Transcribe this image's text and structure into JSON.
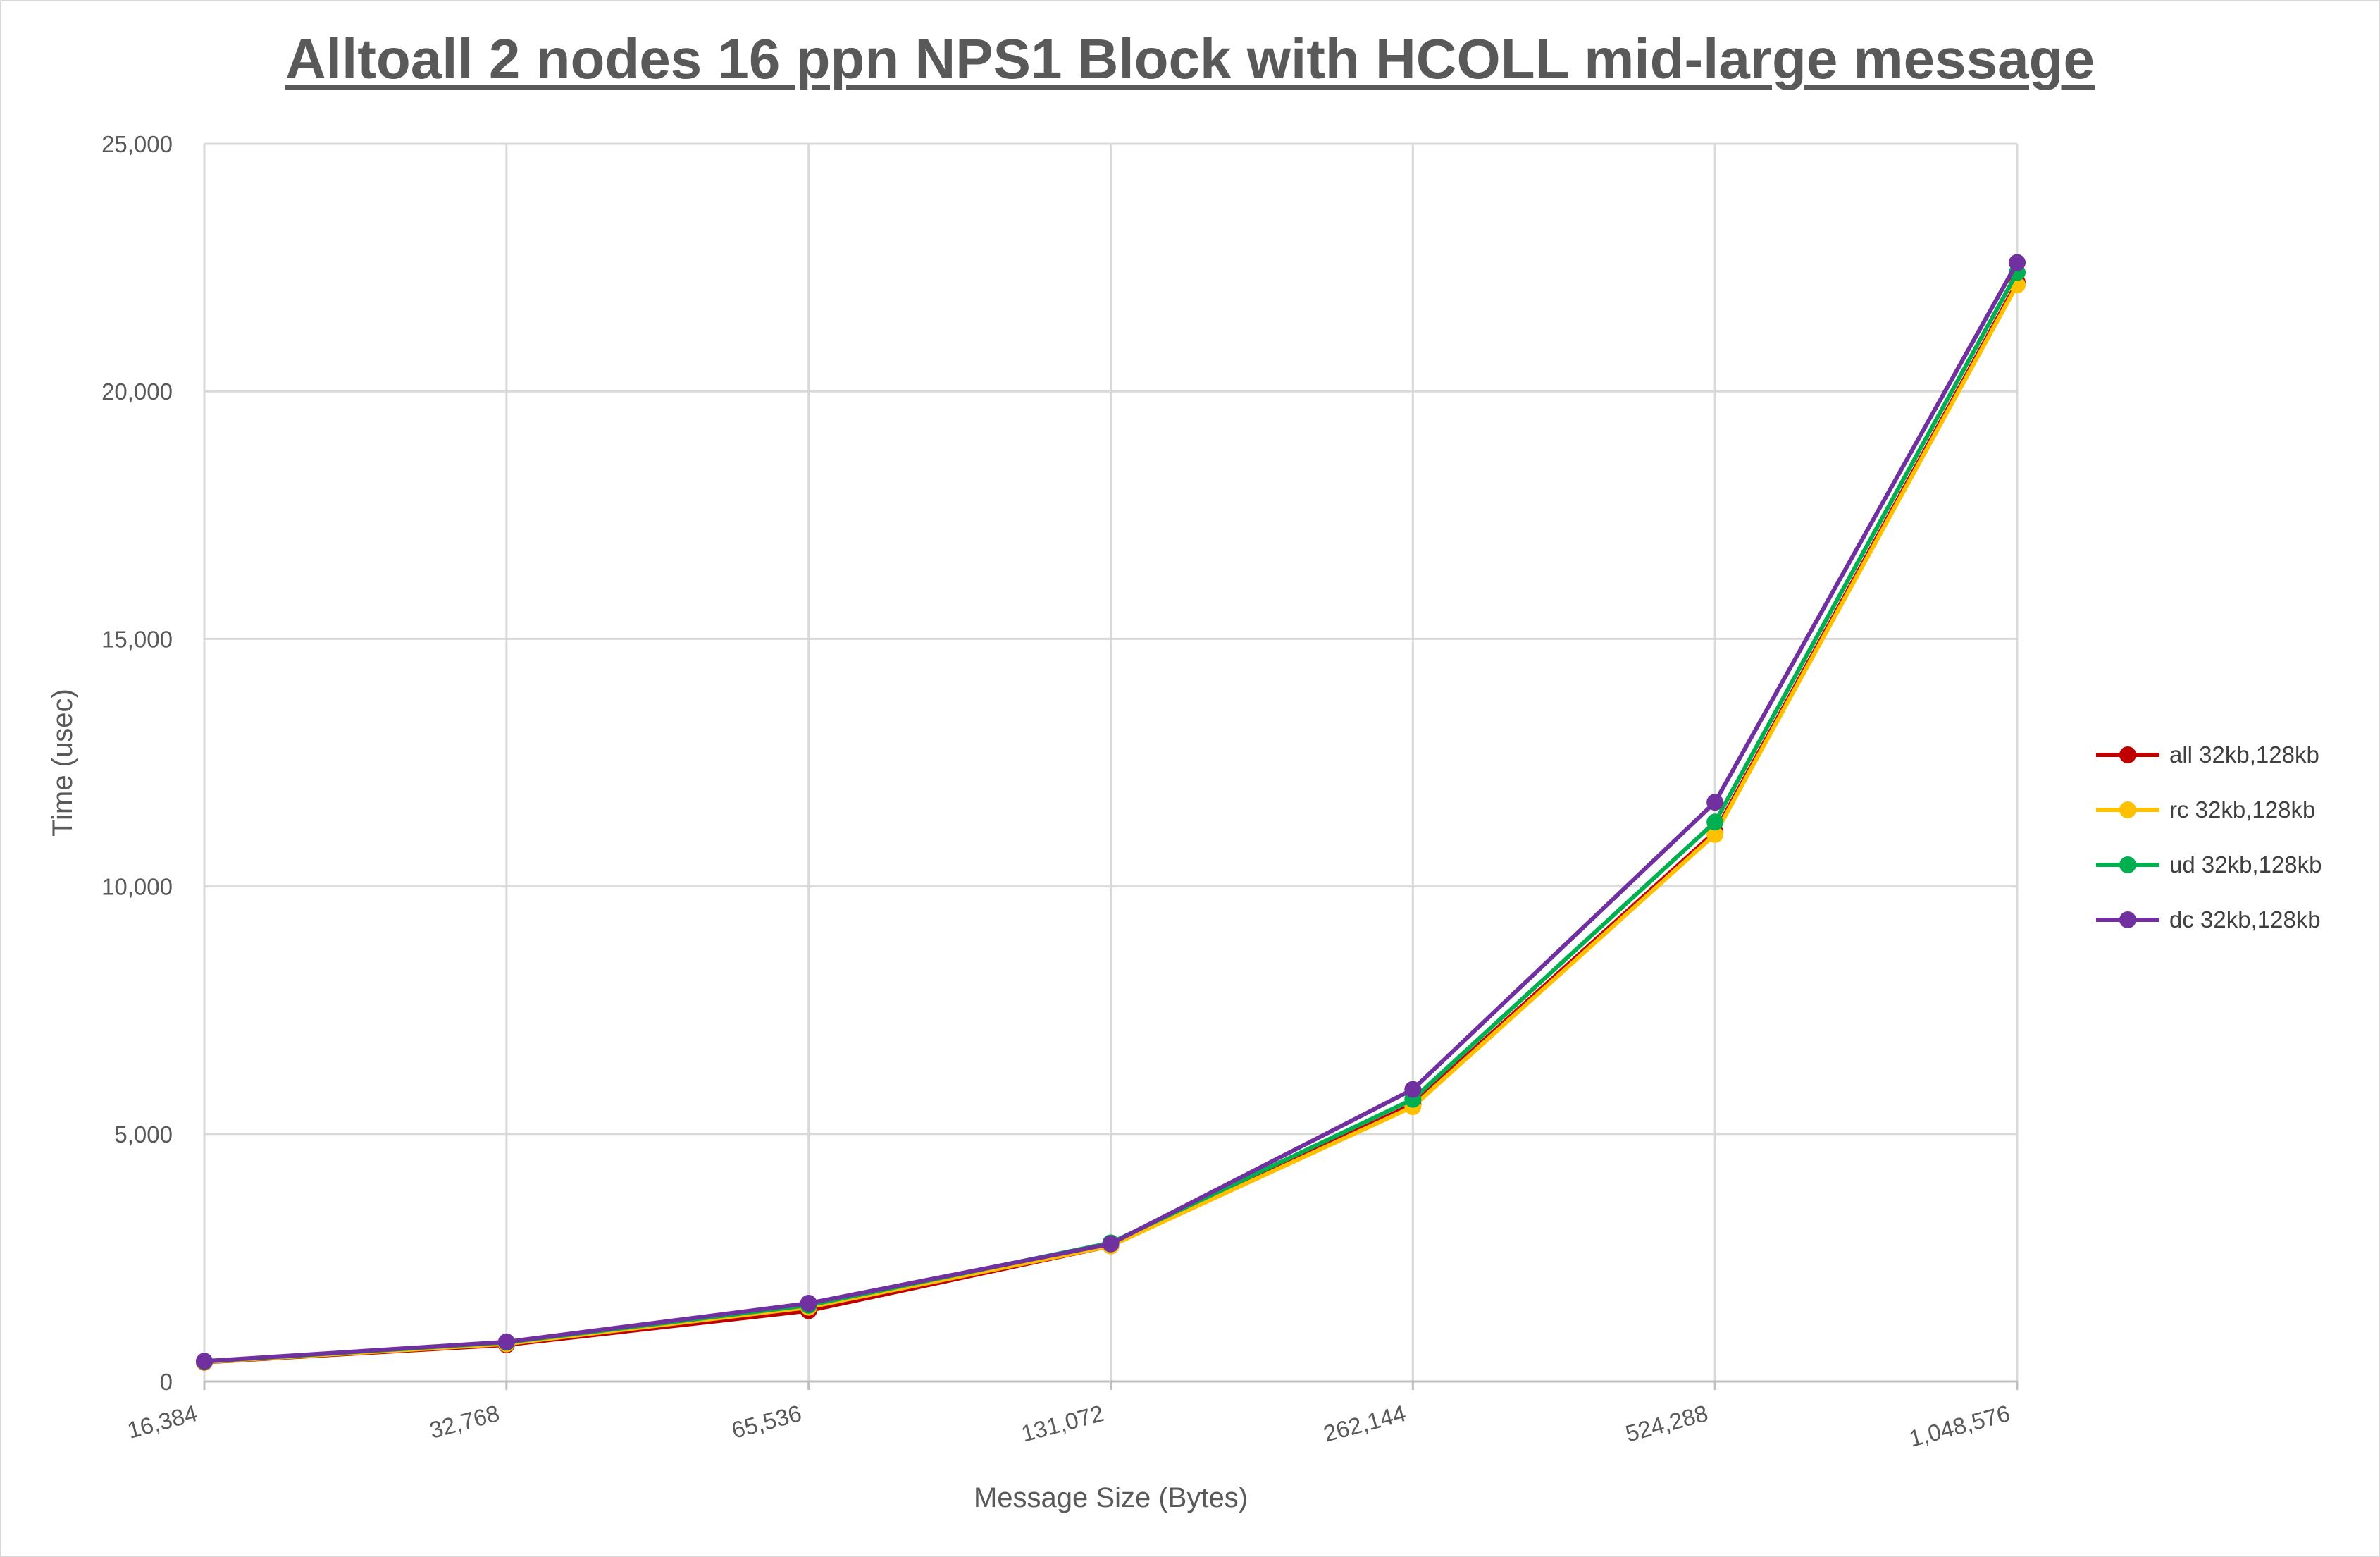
{
  "chart_data": {
    "type": "line",
    "title": "Alltoall 2 nodes 16 ppn NPS1 Block with HCOLL mid-large message",
    "xlabel": "Message Size (Bytes)",
    "ylabel": "Time (usec)",
    "categories": [
      "16,384",
      "32,768",
      "65,536",
      "131,072",
      "262,144",
      "524,288",
      "1,048,576"
    ],
    "ylim": [
      0,
      25000
    ],
    "yticks": [
      0,
      5000,
      10000,
      15000,
      20000,
      25000
    ],
    "ytick_labels": [
      "0",
      "5,000",
      "10,000",
      "15,000",
      "20,000",
      "25,000"
    ],
    "grid": true,
    "legend_position": "right",
    "series": [
      {
        "name": "all 32kb,128kb",
        "color": "#c00000",
        "values": [
          390,
          740,
          1430,
          2740,
          5600,
          11100,
          22200
        ]
      },
      {
        "name": "rc 32kb,128kb",
        "color": "#ffc000",
        "values": [
          395,
          760,
          1500,
          2740,
          5550,
          11050,
          22150
        ]
      },
      {
        "name": "ud 32kb,128kb",
        "color": "#00b050",
        "values": [
          405,
          790,
          1540,
          2800,
          5700,
          11300,
          22400
        ]
      },
      {
        "name": "dc 32kb,128kb",
        "color": "#7030a0",
        "values": [
          410,
          800,
          1580,
          2780,
          5900,
          11700,
          22600
        ]
      }
    ]
  }
}
